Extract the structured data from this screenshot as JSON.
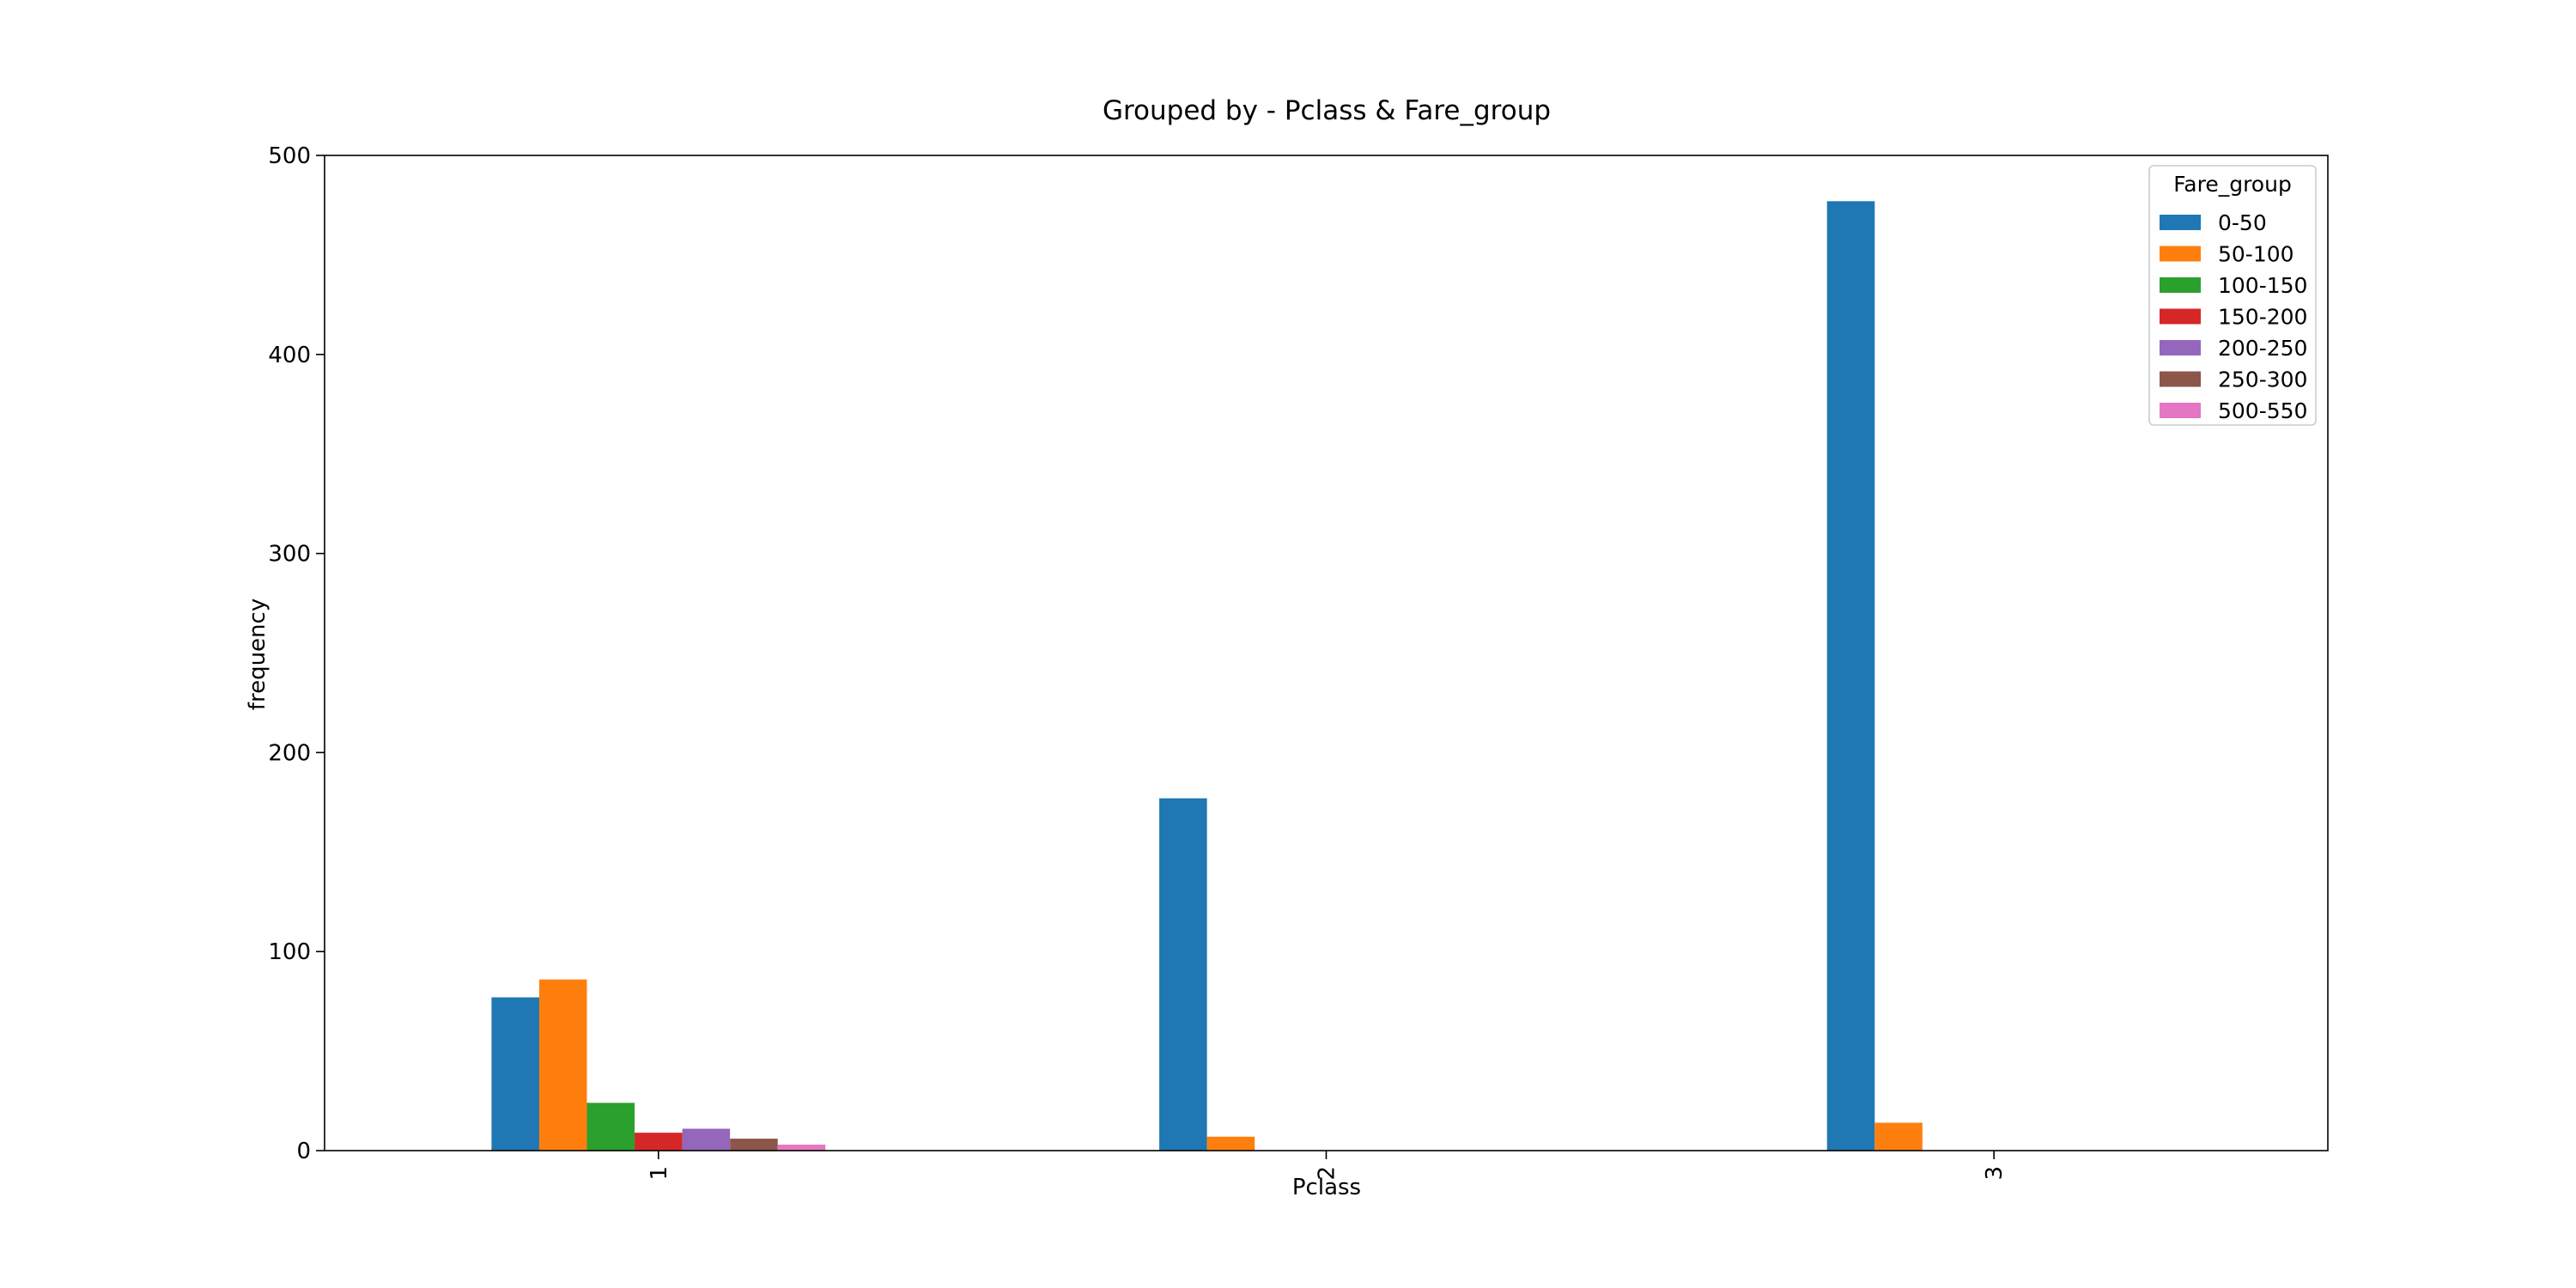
{
  "chart_data": {
    "type": "bar",
    "title": "Grouped by - Pclass & Fare_group",
    "xlabel": "Pclass",
    "ylabel": "frequency",
    "categories": [
      "1",
      "2",
      "3"
    ],
    "ylim": [
      0,
      500
    ],
    "yticks": [
      "0",
      "100",
      "200",
      "300",
      "400",
      "500"
    ],
    "grid": false,
    "legend_title": "Fare_group",
    "legend_position": "top-right",
    "series": [
      {
        "name": "0-50",
        "color": "#1f77b4",
        "values": [
          77,
          177,
          477
        ]
      },
      {
        "name": "50-100",
        "color": "#ff7f0e",
        "values": [
          86,
          7,
          14
        ]
      },
      {
        "name": "100-150",
        "color": "#2ca02c",
        "values": [
          24,
          0,
          0
        ]
      },
      {
        "name": "150-200",
        "color": "#d62728",
        "values": [
          9,
          0,
          0
        ]
      },
      {
        "name": "200-250",
        "color": "#9467bd",
        "values": [
          11,
          0,
          0
        ]
      },
      {
        "name": "250-300",
        "color": "#8c564b",
        "values": [
          6,
          0,
          0
        ]
      },
      {
        "name": "500-550",
        "color": "#e377c2",
        "values": [
          3,
          0,
          0
        ]
      }
    ]
  }
}
